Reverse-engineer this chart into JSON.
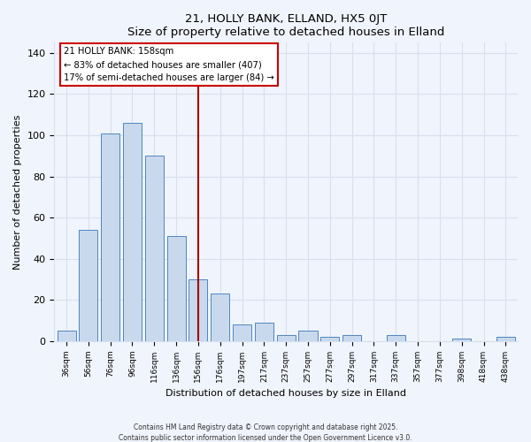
{
  "title": "21, HOLLY BANK, ELLAND, HX5 0JT",
  "subtitle": "Size of property relative to detached houses in Elland",
  "xlabel": "Distribution of detached houses by size in Elland",
  "ylabel": "Number of detached properties",
  "bar_labels": [
    "36sqm",
    "56sqm",
    "76sqm",
    "96sqm",
    "116sqm",
    "136sqm",
    "156sqm",
    "176sqm",
    "197sqm",
    "217sqm",
    "237sqm",
    "257sqm",
    "277sqm",
    "297sqm",
    "317sqm",
    "337sqm",
    "357sqm",
    "377sqm",
    "398sqm",
    "418sqm",
    "438sqm"
  ],
  "bar_values": [
    5,
    54,
    101,
    106,
    90,
    51,
    30,
    23,
    8,
    9,
    3,
    5,
    2,
    3,
    0,
    3,
    0,
    0,
    1,
    0,
    2
  ],
  "bar_color": "#c8d9ee",
  "bar_edge_color": "#4f86c0",
  "vline_idx": 6,
  "vline_color": "#aa0000",
  "annotation_title": "21 HOLLY BANK: 158sqm",
  "annotation_line1": "← 83% of detached houses are smaller (407)",
  "annotation_line2": "17% of semi-detached houses are larger (84) →",
  "annotation_box_color": "#ffffff",
  "annotation_box_edge": "#cc0000",
  "ylim": [
    0,
    145
  ],
  "yticks": [
    0,
    20,
    40,
    60,
    80,
    100,
    120,
    140
  ],
  "footer_line1": "Contains HM Land Registry data © Crown copyright and database right 2025.",
  "footer_line2": "Contains public sector information licensed under the Open Government Licence v3.0.",
  "background_color": "#f0f4fc",
  "grid_color": "#d8e0ee"
}
